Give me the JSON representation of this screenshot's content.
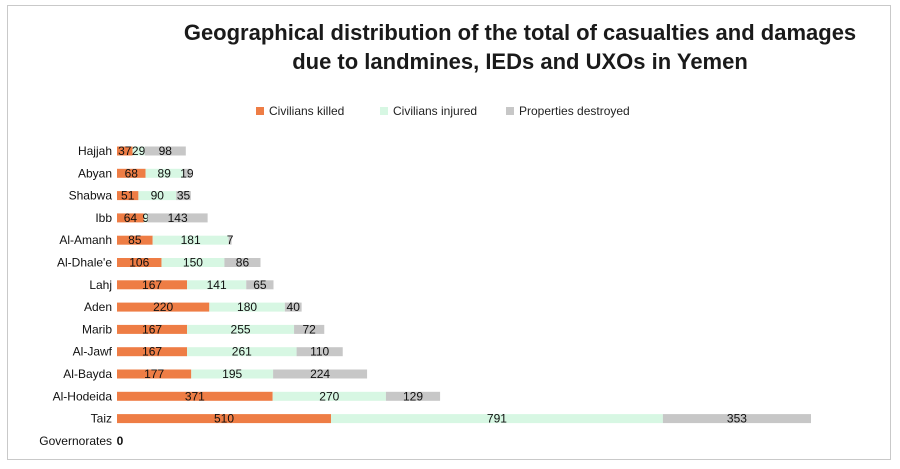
{
  "chart_data": {
    "type": "bar",
    "orientation": "horizontal",
    "stacked": true,
    "title_lines": [
      "Geographical distribution of the total of casualties and damages",
      "due to landmines, IEDs and UXOs in Yemen"
    ],
    "categories": [
      "Hajjah",
      "Abyan",
      "Shabwa",
      "Ibb",
      "Al-Amanh",
      "Al-Dhale'e",
      "Lahj",
      "Aden",
      "Marib",
      "Al-Jawf",
      "Al-Bayda",
      "Al-Hodeida",
      "Taiz",
      "Governorates"
    ],
    "series": [
      {
        "name": "Civilians killed",
        "color": "#ee7d45",
        "values": [
          37,
          68,
          51,
          64,
          85,
          106,
          167,
          220,
          167,
          167,
          177,
          371,
          510,
          0
        ],
        "labels": [
          "37",
          "68",
          "51",
          "64",
          "85",
          "106",
          "167",
          "220",
          "167",
          "167",
          "177",
          "371",
          "510",
          "0"
        ]
      },
      {
        "name": "Civilians injured",
        "color": "#d7f7e3",
        "values": [
          29,
          89,
          90,
          9,
          181,
          150,
          141,
          180,
          255,
          261,
          195,
          270,
          791,
          0
        ],
        "labels": [
          "29",
          "89",
          "90",
          "9",
          "181",
          "150",
          "141",
          "180",
          "255",
          "261",
          "195",
          "270",
          "791",
          ""
        ]
      },
      {
        "name": "Properties destroyed",
        "color": "#c7c7c7",
        "values": [
          98,
          19,
          35,
          143,
          7,
          86,
          65,
          40,
          72,
          110,
          224,
          129,
          353,
          0
        ],
        "labels": [
          "98",
          "19",
          "35",
          "143",
          "7",
          "86",
          "65",
          "40",
          "72",
          "110",
          "224",
          "129",
          "353",
          ""
        ]
      }
    ],
    "xlabel": "",
    "ylabel": "",
    "xlim": [
      0,
      1660
    ],
    "legend_position": "top",
    "grid": false
  }
}
